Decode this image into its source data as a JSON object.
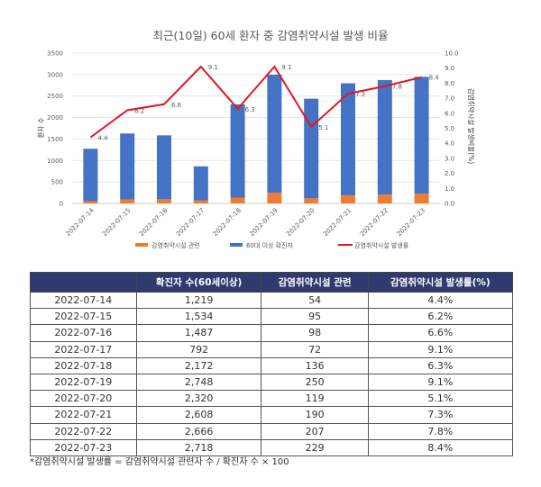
{
  "chart_data": {
    "type": "bar+line",
    "title": "최근(10일) 60세 환자 중 감염취약시설 발생 비율",
    "ylabel": "환자 수",
    "y2label": "감염취약시설 발생비율(%)",
    "ylim": [
      0,
      3500
    ],
    "yticks": [
      "0",
      "500",
      "1000",
      "1500",
      "2000",
      "2500",
      "3000",
      "3500"
    ],
    "y2lim": [
      0,
      10
    ],
    "y2ticks": [
      "0.0",
      "1.0",
      "2.0",
      "3.0",
      "4.0",
      "5.0",
      "6.0",
      "7.0",
      "8.0",
      "9.0",
      "10.0"
    ],
    "categories": [
      "2022-07-14",
      "2022-07-15",
      "2022-07-16",
      "2022-07-17",
      "2022-07-18",
      "2022-07-19",
      "2022-07-20",
      "2022-07-21",
      "2022-07-22",
      "2022-07-23"
    ],
    "series": [
      {
        "name": "감염취약시설 관련",
        "type": "stacked-bar",
        "color": "#ed7d31",
        "values": [
          54,
          95,
          98,
          72,
          136,
          250,
          119,
          190,
          207,
          229
        ]
      },
      {
        "name": "60대 이상 확진자",
        "type": "stacked-bar",
        "color": "#4472c4",
        "values": [
          1219,
          1534,
          1487,
          792,
          2172,
          2748,
          2320,
          2608,
          2666,
          2718
        ]
      },
      {
        "name": "감염취약시설 발생률",
        "type": "line",
        "axis": "right",
        "color": "#e3151f",
        "values": [
          4.4,
          6.2,
          6.6,
          9.1,
          6.3,
          9.1,
          5.1,
          7.3,
          7.8,
          8.4
        ],
        "labels": [
          "4.4",
          "6.2",
          "6.6",
          "9.1",
          "6.3",
          "9.1",
          "5.1",
          "7.3",
          "7.8",
          "8.4"
        ]
      }
    ],
    "legend": "bottom"
  },
  "table": {
    "headers": [
      "",
      "확진자 수(60세이상)",
      "감염취약시설 관련",
      "감염취약시설 발생률(%)"
    ],
    "rows": [
      [
        "2022-07-14",
        "1,219",
        "54",
        "4.4%"
      ],
      [
        "2022-07-15",
        "1,534",
        "95",
        "6.2%"
      ],
      [
        "2022-07-16",
        "1,487",
        "98",
        "6.6%"
      ],
      [
        "2022-07-17",
        "792",
        "72",
        "9.1%"
      ],
      [
        "2022-07-18",
        "2,172",
        "136",
        "6.3%"
      ],
      [
        "2022-07-19",
        "2,748",
        "250",
        "9.1%"
      ],
      [
        "2022-07-20",
        "2,320",
        "119",
        "5.1%"
      ],
      [
        "2022-07-21",
        "2,608",
        "190",
        "7.3%"
      ],
      [
        "2022-07-22",
        "2,666",
        "207",
        "7.8%"
      ],
      [
        "2022-07-23",
        "2,718",
        "229",
        "8.4%"
      ]
    ]
  },
  "footnote": "*감염취약시설 발생률 = 감염취약시설 관련자 수 / 확진자 수 × 100"
}
